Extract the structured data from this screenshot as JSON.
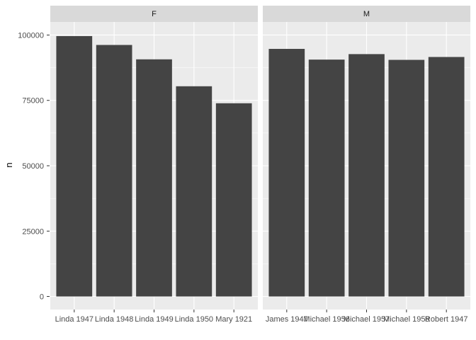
{
  "chart_data": {
    "type": "bar",
    "title": "",
    "xlabel": "",
    "ylabel": "n",
    "ylim": [
      -5000,
      105000
    ],
    "yticks": [
      0,
      25000,
      50000,
      75000,
      100000
    ],
    "grid": true,
    "bar_color": "#444444",
    "panel_color": "#ebebeb",
    "strip_color": "#d9d9d9",
    "facets": [
      {
        "label": "F",
        "categories": [
          "Linda 1947",
          "Linda 1948",
          "Linda 1949",
          "Linda 1950",
          "Mary 1921"
        ],
        "values": [
          99600,
          96200,
          90700,
          80400,
          73900
        ]
      },
      {
        "label": "M",
        "categories": [
          "James 1947",
          "Michael 1956",
          "Michael 1957",
          "Michael 1958",
          "Robert 1947"
        ],
        "values": [
          94700,
          90600,
          92700,
          90500,
          91600
        ]
      }
    ]
  }
}
